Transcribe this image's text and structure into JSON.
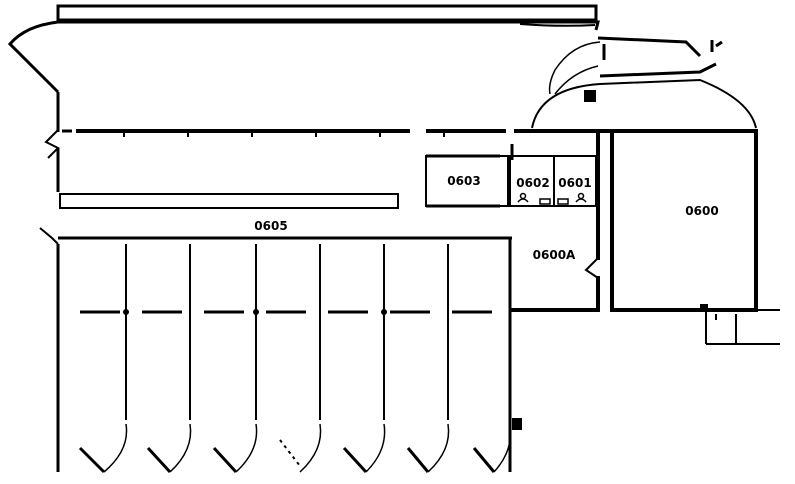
{
  "plan": {
    "rooms": [
      {
        "id": "room-0600",
        "label": "0600"
      },
      {
        "id": "room-0600a",
        "label": "0600A"
      },
      {
        "id": "room-0601",
        "label": "0601"
      },
      {
        "id": "room-0602",
        "label": "0602"
      },
      {
        "id": "room-0603",
        "label": "0603"
      },
      {
        "id": "room-0605",
        "label": "0605"
      }
    ]
  }
}
